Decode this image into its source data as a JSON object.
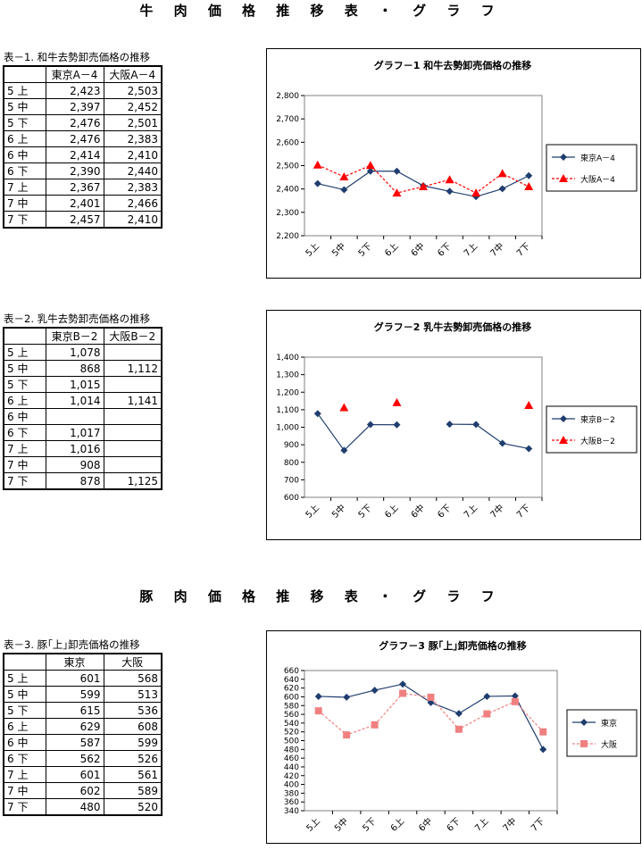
{
  "sections": {
    "beef_title": "牛 肉 価 格 推 移 表 ・ グ ラ フ",
    "pork_title": "豚 肉 価 格 推 移 表 ・ グ ラ フ"
  },
  "tables": [
    {
      "caption": "表－1. 和牛去勢卸売価格の推移",
      "headers": [
        "",
        "東京A－4",
        "大阪A－4"
      ],
      "rows": [
        [
          "5 上",
          "2,423",
          "2,503"
        ],
        [
          "5 中",
          "2,397",
          "2,452"
        ],
        [
          "5 下",
          "2,476",
          "2,501"
        ],
        [
          "6 上",
          "2,476",
          "2,383"
        ],
        [
          "6 中",
          "2,414",
          "2,410"
        ],
        [
          "6 下",
          "2,390",
          "2,440"
        ],
        [
          "7 上",
          "2,367",
          "2,383"
        ],
        [
          "7 中",
          "2,401",
          "2,466"
        ],
        [
          "7 下",
          "2,457",
          "2,410"
        ]
      ]
    },
    {
      "caption": "表－2. 乳牛去勢卸売価格の推移",
      "headers": [
        "",
        "東京B－2",
        "大阪B－2"
      ],
      "rows": [
        [
          "5 上",
          "1,078",
          ""
        ],
        [
          "5 中",
          "868",
          "1,112"
        ],
        [
          "5 下",
          "1,015",
          ""
        ],
        [
          "6 上",
          "1,014",
          "1,141"
        ],
        [
          "6 中",
          "",
          ""
        ],
        [
          "6 下",
          "1,017",
          ""
        ],
        [
          "7 上",
          "1,016",
          ""
        ],
        [
          "7 中",
          "908",
          ""
        ],
        [
          "7 下",
          "878",
          "1,125"
        ]
      ]
    },
    {
      "caption": "表－3. 豚｢上｣卸売価格の推移",
      "headers": [
        "",
        "東京",
        "大阪"
      ],
      "rows": [
        [
          "5 上",
          "601",
          "568"
        ],
        [
          "5 中",
          "599",
          "513"
        ],
        [
          "5 下",
          "615",
          "536"
        ],
        [
          "6 上",
          "629",
          "608"
        ],
        [
          "6 中",
          "587",
          "599"
        ],
        [
          "6 下",
          "562",
          "526"
        ],
        [
          "7 上",
          "601",
          "561"
        ],
        [
          "7 中",
          "602",
          "589"
        ],
        [
          "7 下",
          "480",
          "520"
        ]
      ]
    }
  ],
  "chart_data": [
    {
      "type": "line",
      "title": "グラフ－1 和牛去勢卸売価格の推移",
      "categories": [
        "5上",
        "5中",
        "5下",
        "6上",
        "6中",
        "6下",
        "7上",
        "7中",
        "7下"
      ],
      "ylim": [
        2200,
        2800
      ],
      "ystep": 100,
      "yticks": [
        "2,200",
        "2,300",
        "2,400",
        "2,500",
        "2,600",
        "2,700",
        "2,800"
      ],
      "legend_placement": "right",
      "series": [
        {
          "name": "東京A－4",
          "values": [
            2423,
            2397,
            2476,
            2476,
            2414,
            2390,
            2367,
            2401,
            2457
          ],
          "color": "#1f3d6e",
          "marker": "diamond",
          "dash": false
        },
        {
          "name": "大阪A－4",
          "values": [
            2503,
            2452,
            2501,
            2383,
            2410,
            2440,
            2383,
            2466,
            2410
          ],
          "color": "#ff0000",
          "marker": "triangle",
          "dash": true
        }
      ]
    },
    {
      "type": "line",
      "title": "グラフ－2 乳牛去勢卸売価格の推移",
      "categories": [
        "5上",
        "5中",
        "5下",
        "6上",
        "6中",
        "6下",
        "7上",
        "7中",
        "7下"
      ],
      "ylim": [
        600,
        1400
      ],
      "ystep": 100,
      "yticks": [
        "600",
        "700",
        "800",
        "900",
        "1,000",
        "1,100",
        "1,200",
        "1,300",
        "1,400"
      ],
      "legend_placement": "right",
      "series": [
        {
          "name": "東京B－2",
          "values": [
            1078,
            868,
            1015,
            1014,
            null,
            1017,
            1016,
            908,
            878
          ],
          "color": "#1f3d6e",
          "marker": "diamond",
          "dash": false
        },
        {
          "name": "大阪B－2",
          "values": [
            null,
            1112,
            null,
            1141,
            null,
            null,
            null,
            null,
            1125
          ],
          "color": "#ff0000",
          "marker": "triangle",
          "dash": true
        }
      ]
    },
    {
      "type": "line",
      "title": "グラフ－3 豚｢上｣卸売価格の推移",
      "categories": [
        "5上",
        "5中",
        "5下",
        "6上",
        "6中",
        "6下",
        "7上",
        "7中",
        "7下"
      ],
      "ylim": [
        340,
        660
      ],
      "ystep": 20,
      "yticks": [
        "340",
        "360",
        "380",
        "400",
        "420",
        "440",
        "460",
        "480",
        "500",
        "520",
        "540",
        "560",
        "580",
        "600",
        "620",
        "640",
        "660"
      ],
      "legend_placement": "right",
      "series": [
        {
          "name": "東京",
          "values": [
            601,
            599,
            615,
            629,
            587,
            562,
            601,
            602,
            480
          ],
          "color": "#1f3d6e",
          "marker": "diamond",
          "dash": false
        },
        {
          "name": "大阪",
          "values": [
            568,
            513,
            536,
            608,
            599,
            526,
            561,
            589,
            520
          ],
          "color": "#f08080",
          "marker": "square",
          "dash": true
        }
      ]
    }
  ]
}
